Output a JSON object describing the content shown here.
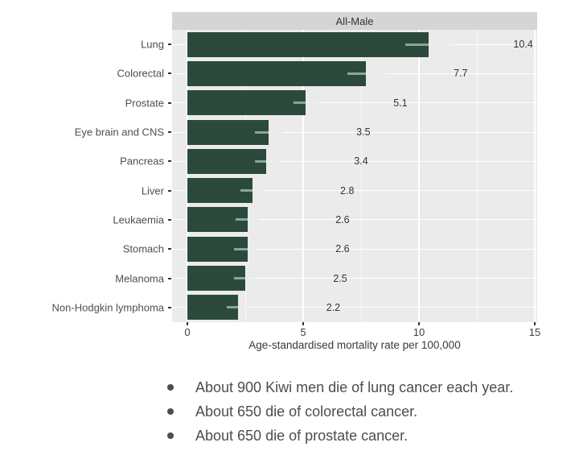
{
  "figure": {
    "facet_label": "All-Male"
  },
  "chart_data": {
    "type": "bar",
    "orientation": "horizontal",
    "title": "All-Male",
    "categories": [
      "Lung",
      "Colorectal",
      "Prostate",
      "Eye brain and CNS",
      "Pancreas",
      "Liver",
      "Leukaemia",
      "Stomach",
      "Melanoma",
      "Non-Hodgkin lymphoma"
    ],
    "values": [
      10.4,
      7.7,
      5.1,
      3.5,
      3.4,
      2.8,
      2.6,
      2.6,
      2.5,
      2.2
    ],
    "value_labels": [
      "10.4",
      "7.7",
      "5.1",
      "3.5",
      "3.4",
      "2.8",
      "2.6",
      "2.6",
      "2.5",
      "2.2"
    ],
    "error_bars": [
      [
        9.4,
        11.5
      ],
      [
        6.9,
        8.6
      ],
      [
        4.6,
        5.7
      ],
      [
        2.9,
        4.2
      ],
      [
        2.9,
        4.0
      ],
      [
        2.3,
        3.3
      ],
      [
        2.1,
        3.1
      ],
      [
        2.0,
        3.0
      ],
      [
        2.0,
        2.9
      ],
      [
        1.7,
        2.7
      ]
    ],
    "xlabel": "Age-standardised mortality rate per 100,000",
    "xlim": [
      0,
      15
    ],
    "x_ticks": [
      0,
      5,
      10,
      15
    ],
    "grid": true,
    "legend": "none",
    "colors": {
      "bar": "#2c4a3c",
      "panel_bg": "#ebebeb",
      "strip_bg": "#d5d5d5",
      "gridline": "#ffffff",
      "error_bar": "#d9efe6",
      "axis_text": "#3f3f3f",
      "label_text": "#4e4e4e"
    }
  },
  "notes": {
    "bullets": [
      "About 900 Kiwi men die of lung cancer each year.",
      "About 650 die of colorectal cancer.",
      "About 650 die of prostate cancer."
    ]
  }
}
